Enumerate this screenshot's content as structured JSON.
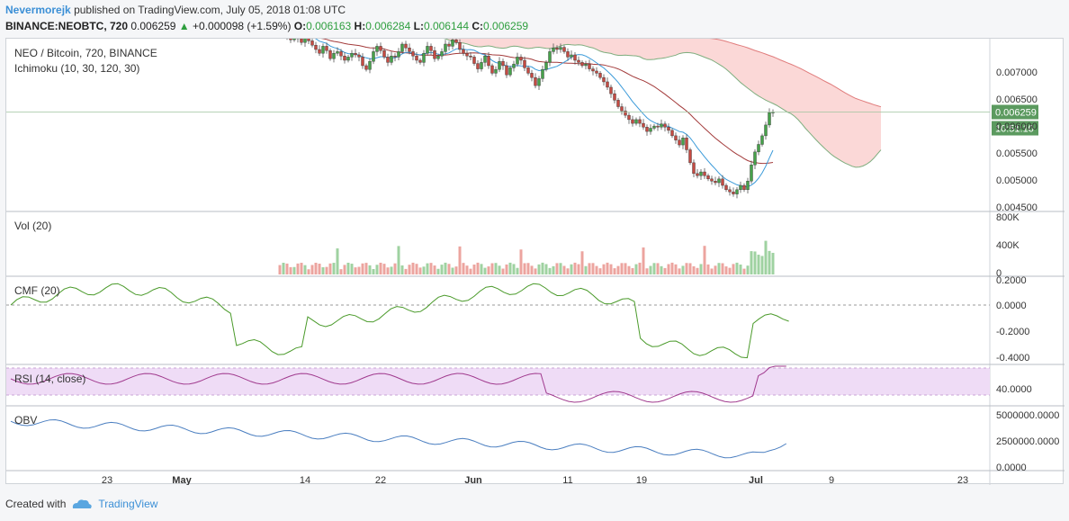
{
  "header": {
    "author": "Nevermorejk",
    "published_text": "published on TradingView.com, July 05, 2018 01:08 UTC",
    "symbol": "BINANCE:NEOBTC, 720",
    "last": "0.006259",
    "arrow": "▲",
    "change": "+0.000098 (+1.59%)",
    "o_label": "O:",
    "o": "0.006163",
    "h_label": "H:",
    "h": "0.006284",
    "l_label": "L:",
    "l": "0.006144",
    "c_label": "C:",
    "c": "0.006259"
  },
  "chart_data": {
    "type": "candlestick",
    "title": "NEO / Bitcoin, 720, BINANCE",
    "subtitle": "Ichimoku (10, 30, 120, 30)",
    "price_axis_ticks": [
      "0.007000",
      "0.006500",
      "0.006000",
      "0.005500",
      "0.005000",
      "0.004500"
    ],
    "ylim": [
      0.00445,
      0.00762
    ],
    "last_price_label": "0.006259",
    "countdown_label": "10:51:10",
    "x_ticks": [
      "23",
      "May",
      "14",
      "22",
      "Jun",
      "11",
      "19",
      "Jul",
      "9",
      "23"
    ],
    "close_series": [
      0.00792,
      0.00775,
      0.00782,
      0.00768,
      0.0076,
      0.00775,
      0.00762,
      0.00755,
      0.00768,
      0.00758,
      0.0075,
      0.00742,
      0.00735,
      0.00748,
      0.0074,
      0.00725,
      0.00735,
      0.00738,
      0.0073,
      0.00722,
      0.00728,
      0.00735,
      0.00732,
      0.00728,
      0.00712,
      0.00705,
      0.0072,
      0.00738,
      0.00748,
      0.0074,
      0.00728,
      0.00718,
      0.0073,
      0.00728,
      0.00738,
      0.00752,
      0.00745,
      0.00738,
      0.0073,
      0.00722,
      0.00718,
      0.00735,
      0.00748,
      0.0074,
      0.00725,
      0.0073,
      0.00738,
      0.00752,
      0.00748,
      0.0076,
      0.00755,
      0.00742,
      0.00735,
      0.0073,
      0.00728,
      0.00716,
      0.00706,
      0.00718,
      0.0073,
      0.00712,
      0.00698,
      0.00705,
      0.0072,
      0.00712,
      0.00695,
      0.00708,
      0.00715,
      0.00728,
      0.00722,
      0.00708,
      0.00698,
      0.0069,
      0.00675,
      0.00688,
      0.00705,
      0.00718,
      0.00738,
      0.00745,
      0.00742,
      0.00746,
      0.00738,
      0.00728,
      0.00732,
      0.00722,
      0.00718,
      0.00712,
      0.00715,
      0.00706,
      0.00702,
      0.00698,
      0.0069,
      0.00682,
      0.00672,
      0.0066,
      0.00648,
      0.00636,
      0.00628,
      0.0062,
      0.00612,
      0.00605,
      0.00612,
      0.00605,
      0.00598,
      0.0059,
      0.00596,
      0.006,
      0.00598,
      0.00604,
      0.00598,
      0.00592,
      0.00582,
      0.00574,
      0.00565,
      0.00578,
      0.00556,
      0.00532,
      0.00512,
      0.00508,
      0.00515,
      0.00508,
      0.00502,
      0.00498,
      0.00495,
      0.00502,
      0.0049,
      0.00482,
      0.00478,
      0.00474,
      0.00482,
      0.0049,
      0.00482,
      0.00498,
      0.00528,
      0.00552,
      0.00566,
      0.00582,
      0.00602,
      0.00625,
      0.00626
    ],
    "volume": {
      "label": "Vol (20)",
      "ticks": [
        "800K",
        "400K",
        "0"
      ]
    },
    "cmf": {
      "label": "CMF (20)",
      "ticks": [
        "0.2000",
        "0.0000",
        "-0.2000",
        "-0.4000"
      ]
    },
    "rsi": {
      "label": "RSI (14, close)",
      "ticks": [
        "40.0000"
      ]
    },
    "obv": {
      "label": "OBV",
      "ticks": [
        "5000000.0000",
        "2500000.0000",
        "0.0000"
      ]
    }
  },
  "colors": {
    "up": "#46a24a",
    "down": "#c54a42",
    "tenkan": "#3a9ad9",
    "kijun": "#a33b3b",
    "cloud": "#fad1d0",
    "cmf": "#4a9a2a",
    "rsi": "#a03a8e",
    "obv": "#4a7ec0"
  },
  "footer": {
    "created_with": "Created with",
    "brand": "TradingView"
  }
}
